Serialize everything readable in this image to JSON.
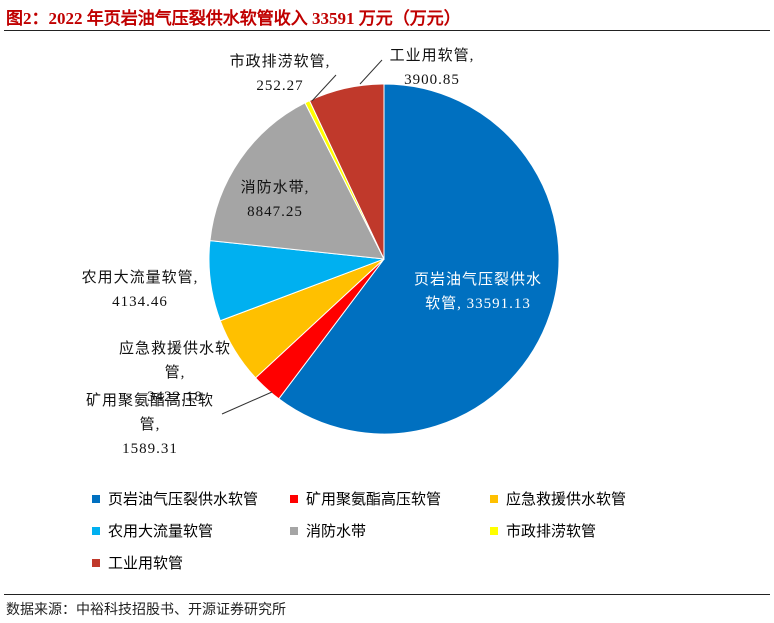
{
  "chart_data": {
    "type": "pie",
    "title": "图2：2022 年页岩油气压裂供水软管收入 33591 万元（万元）",
    "categories": [
      "页岩油气压裂供水软管",
      "矿用聚氨酯高压软管",
      "应急救援供水软管",
      "农用大流量软管",
      "消防水带",
      "市政排涝软管",
      "工业用软管"
    ],
    "values": [
      33591.13,
      1589.31,
      3422.18,
      4134.46,
      8847.25,
      252.27,
      3900.85
    ],
    "colors": [
      "#0070c0",
      "#ff0000",
      "#ffc000",
      "#00b0f0",
      "#a5a5a5",
      "#ffff00",
      "#c0392b"
    ]
  },
  "source": "数据来源：中裕科技招股书、开源证券研究所"
}
